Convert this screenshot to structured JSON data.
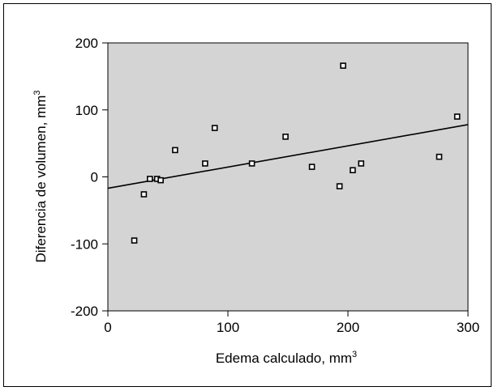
{
  "chart_data": {
    "type": "scatter",
    "title": "",
    "xlabel": "Edema calculado, mm",
    "xlabel_sup": "3",
    "ylabel": "Diferencia de volumen, mm",
    "ylabel_sup": "3",
    "xlim": [
      0,
      300
    ],
    "ylim": [
      -200,
      200
    ],
    "xticks": [
      "0",
      "100",
      "200",
      "300"
    ],
    "yticks": [
      "-200",
      "-100",
      "0",
      "100",
      "200"
    ],
    "grid": false,
    "legend": "none",
    "colors": {
      "plot_background": "#d4d4d4",
      "marker_fill": "#ffffff",
      "marker_stroke": "#000000",
      "trend_line": "#000000"
    },
    "points": [
      {
        "x": 22,
        "y": -95
      },
      {
        "x": 30,
        "y": -26
      },
      {
        "x": 35,
        "y": -3
      },
      {
        "x": 41,
        "y": -3
      },
      {
        "x": 44,
        "y": -5
      },
      {
        "x": 56,
        "y": 40
      },
      {
        "x": 81,
        "y": 20
      },
      {
        "x": 89,
        "y": 73
      },
      {
        "x": 120,
        "y": 20
      },
      {
        "x": 148,
        "y": 60
      },
      {
        "x": 170,
        "y": 15
      },
      {
        "x": 193,
        "y": -14
      },
      {
        "x": 196,
        "y": 166
      },
      {
        "x": 204,
        "y": 10
      },
      {
        "x": 211,
        "y": 20
      },
      {
        "x": 276,
        "y": 30
      },
      {
        "x": 291,
        "y": 90
      }
    ],
    "trendline": {
      "x": [
        0,
        300
      ],
      "y": [
        -17,
        78
      ]
    }
  }
}
